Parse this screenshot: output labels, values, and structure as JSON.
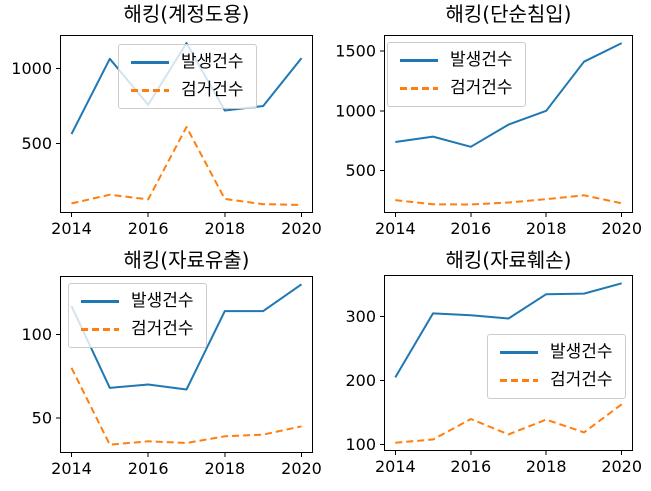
{
  "figure": {
    "background": "#ffffff"
  },
  "chart_data": [
    {
      "type": "line",
      "title": "해킹(계정도용)",
      "x": [
        2014,
        2015,
        2016,
        2017,
        2018,
        2019,
        2020
      ],
      "xticks": [
        2014,
        2016,
        2018,
        2020
      ],
      "yticks": [
        500,
        1000
      ],
      "xlim": [
        2013.7,
        2020.3
      ],
      "ylim": [
        36,
        1224
      ],
      "grid": false,
      "legend_pos": "upper-center",
      "series": [
        {
          "name": "발생건수",
          "color": "#1f77b4",
          "style": "solid",
          "values": [
            563,
            1065,
            758,
            1170,
            720,
            750,
            1070
          ]
        },
        {
          "name": "검거건수",
          "color": "#ff7f0e",
          "style": "dashed",
          "values": [
            100,
            158,
            127,
            610,
            130,
            95,
            90
          ]
        }
      ]
    },
    {
      "type": "line",
      "title": "해킹(단순침입)",
      "x": [
        2014,
        2015,
        2016,
        2017,
        2018,
        2019,
        2020
      ],
      "xticks": [
        2014,
        2016,
        2018,
        2020
      ],
      "yticks": [
        500,
        1000,
        1500
      ],
      "xlim": [
        2013.7,
        2020.3
      ],
      "ylim": [
        147,
        1633
      ],
      "grid": false,
      "legend_pos": "upper-left",
      "series": [
        {
          "name": "발생건수",
          "color": "#1f77b4",
          "style": "solid",
          "values": [
            740,
            785,
            700,
            885,
            1000,
            1410,
            1565
          ]
        },
        {
          "name": "검거건수",
          "color": "#ff7f0e",
          "style": "dashed",
          "values": [
            255,
            220,
            218,
            235,
            262,
            295,
            228
          ]
        }
      ]
    },
    {
      "type": "line",
      "title": "해킹(자료유출)",
      "x": [
        2014,
        2015,
        2016,
        2017,
        2018,
        2019,
        2020
      ],
      "xticks": [
        2014,
        2016,
        2018,
        2020
      ],
      "yticks": [
        50,
        100
      ],
      "xlim": [
        2013.7,
        2020.3
      ],
      "ylim": [
        29,
        135
      ],
      "grid": false,
      "legend_pos": "upper-left",
      "series": [
        {
          "name": "발생건수",
          "color": "#1f77b4",
          "style": "solid",
          "values": [
            117,
            68,
            70,
            67,
            114,
            114,
            130
          ]
        },
        {
          "name": "검거건수",
          "color": "#ff7f0e",
          "style": "dashed",
          "values": [
            80,
            34,
            36,
            35,
            39,
            40,
            45
          ]
        }
      ]
    },
    {
      "type": "line",
      "title": "해킹(자료훼손)",
      "x": [
        2014,
        2015,
        2016,
        2017,
        2018,
        2019,
        2020
      ],
      "xticks": [
        2014,
        2016,
        2018,
        2020
      ],
      "yticks": [
        100,
        200,
        300
      ],
      "xlim": [
        2013.7,
        2020.3
      ],
      "ylim": [
        90,
        365
      ],
      "grid": false,
      "legend_pos": "center-right",
      "series": [
        {
          "name": "발생건수",
          "color": "#1f77b4",
          "style": "solid",
          "values": [
            205,
            305,
            302,
            297,
            335,
            336,
            352
          ]
        },
        {
          "name": "검거건수",
          "color": "#ff7f0e",
          "style": "dashed",
          "values": [
            103,
            108,
            140,
            116,
            139,
            119,
            163
          ]
        }
      ]
    }
  ]
}
